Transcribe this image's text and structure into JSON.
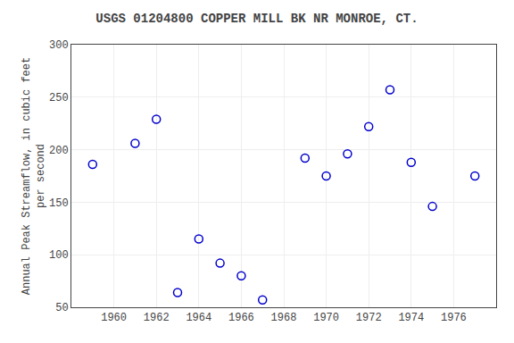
{
  "chart_data": {
    "type": "scatter",
    "title": "USGS 01204800 COPPER MILL BK NR MONROE, CT.",
    "ylabel": "Annual Peak Streamflow, in cubic feet\nper second",
    "x": [
      1959,
      1961,
      1962,
      1963,
      1964,
      1965,
      1966,
      1967,
      1969,
      1970,
      1971,
      1972,
      1973,
      1974,
      1975,
      1977
    ],
    "values": [
      186,
      206,
      229,
      64,
      115,
      92,
      80,
      57,
      192,
      175,
      196,
      222,
      257,
      188,
      146,
      175
    ],
    "xlim": [
      1958,
      1978
    ],
    "ylim": [
      50,
      300
    ],
    "xticks": [
      1960,
      1962,
      1964,
      1966,
      1968,
      1970,
      1972,
      1974,
      1976
    ],
    "yticks": [
      50,
      100,
      150,
      200,
      250,
      300
    ],
    "color": "#0000cc",
    "marker": "circle-open",
    "grid": true
  }
}
